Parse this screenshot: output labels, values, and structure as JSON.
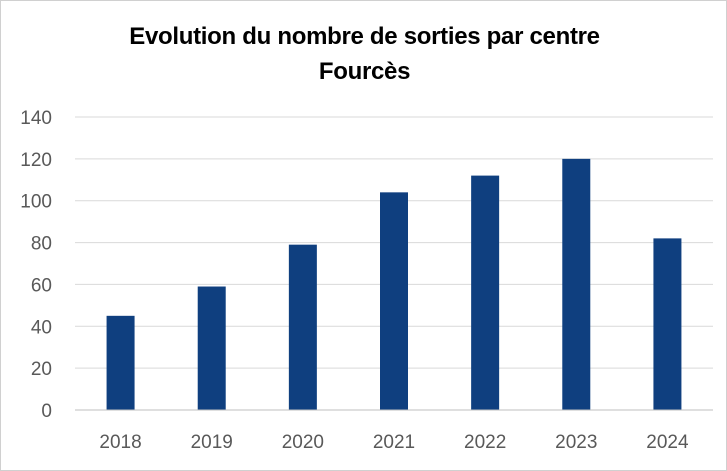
{
  "chart_data": {
    "type": "bar",
    "title": "Evolution du nombre de sorties par centre",
    "subtitle": "Fourcès",
    "categories": [
      "2018",
      "2019",
      "2020",
      "2021",
      "2022",
      "2023",
      "2024"
    ],
    "values": [
      45,
      59,
      79,
      104,
      112,
      120,
      82
    ],
    "ylim": [
      0,
      140
    ],
    "yticks": [
      0,
      20,
      40,
      60,
      80,
      100,
      120,
      140
    ],
    "grid": true,
    "legend": "none",
    "colors": {
      "bar": "#0f3f7f",
      "grid": "#d9d9d9",
      "axis": "#bfbfbf",
      "tick_text": "#595959"
    }
  }
}
